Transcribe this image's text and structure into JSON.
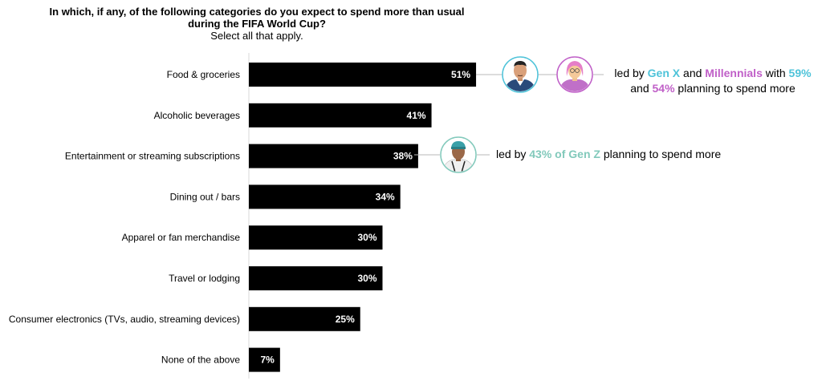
{
  "title": {
    "question": "In which, if any, of the following categories do you expect to spend more than usual during the FIFA World Cup?",
    "instruction": "Select all that apply."
  },
  "chart_data": {
    "type": "bar",
    "orientation": "horizontal",
    "categories": [
      "Food & groceries",
      "Alcoholic beverages",
      "Entertainment or streaming subscriptions",
      "Dining out / bars",
      "Apparel or fan merchandise",
      "Travel or lodging",
      "Consumer electronics (TVs, audio, streaming devices)",
      "None of the above"
    ],
    "values": [
      51,
      41,
      38,
      34,
      30,
      30,
      25,
      7
    ],
    "value_labels": [
      "51%",
      "41%",
      "38%",
      "34%",
      "30%",
      "30%",
      "25%",
      "7%"
    ],
    "unit": "%",
    "bar_color": "#000000",
    "label_color": "#ffffff",
    "grid": false,
    "legend": "none"
  },
  "callouts": {
    "food": {
      "pre": "led by ",
      "gen_x": "Gen X",
      "and1": " and ",
      "millennials": "Millennials",
      "with": " with ",
      "pct1": "59%",
      "and2": "and ",
      "pct2": "54%",
      "post": " planning to spend more"
    },
    "entertainment": {
      "pre": "led by ",
      "highlight": "43% of Gen Z",
      "post": " planning to spend more"
    }
  },
  "colors": {
    "gen_x": "#4ec3d9",
    "millennials": "#c060c8",
    "gen_z": "#82c9bb",
    "connector": "#b8b8b8"
  },
  "icons": [
    "gen-x-avatar-icon",
    "millennial-avatar-icon",
    "gen-z-avatar-icon"
  ]
}
